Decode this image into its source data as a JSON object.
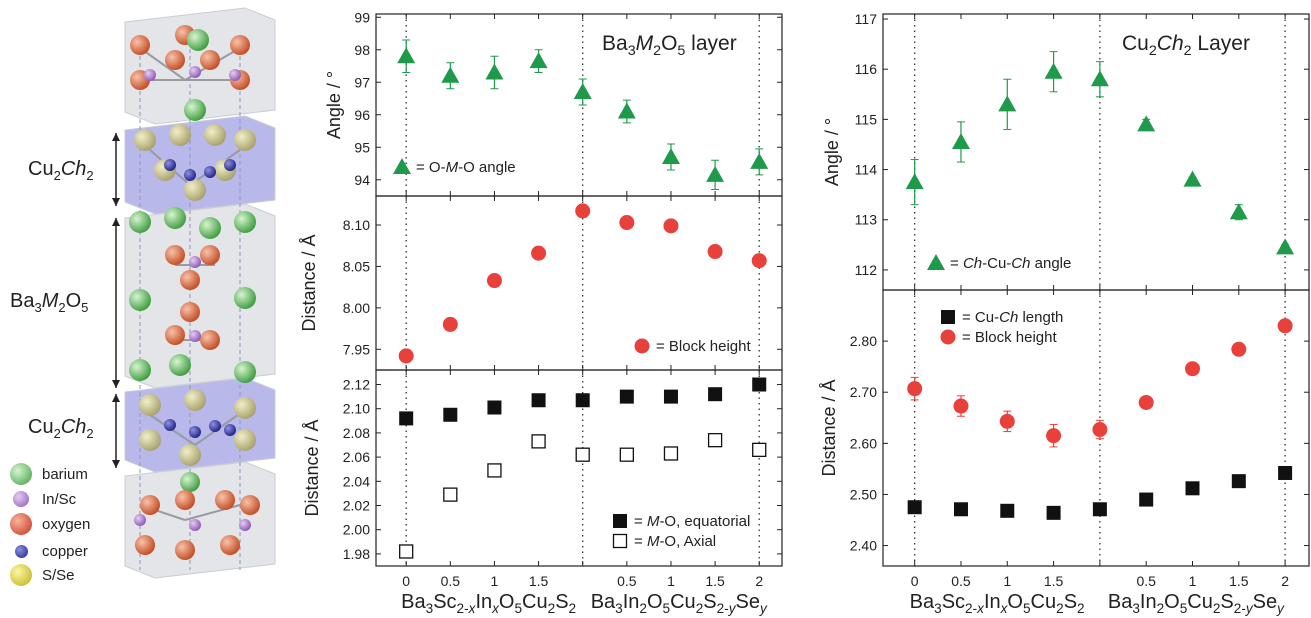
{
  "structure": {
    "labels": [
      {
        "main": "Cu",
        "sub1": "2",
        "italic": "Ch",
        "sub2": "2"
      },
      {
        "main": "Ba",
        "sub1": "3",
        "italic": "M",
        "sub2": "2",
        "tail": "O",
        "sub3": "5"
      },
      {
        "main": "Cu",
        "sub1": "2",
        "italic": "Ch",
        "sub2": "2"
      }
    ],
    "legend": [
      {
        "label": "barium",
        "color": "#5cb85c"
      },
      {
        "label": "In/Sc",
        "color": "#a36bc5"
      },
      {
        "label": "oxygen",
        "color": "#d9532c"
      },
      {
        "label": "copper",
        "color": "#2b2d9a"
      },
      {
        "label": "S/Se",
        "color": "#d9d22a"
      }
    ]
  },
  "chart_data": [
    {
      "type": "scatter",
      "panel": "middle-top",
      "title": "Ba3M2O5 layer",
      "ylabel": "Angle / °",
      "ylim": [
        93.5,
        99.1
      ],
      "yticks": [
        94,
        95,
        96,
        97,
        98,
        99
      ],
      "grid": false,
      "series": [
        {
          "name": "= O-M-O angle",
          "marker": "triangle",
          "color": "#1e9a4a",
          "x": [
            0,
            0.5,
            1,
            1.5,
            2,
            2.5,
            3,
            3.5,
            4
          ],
          "y": [
            97.8,
            97.2,
            97.3,
            97.65,
            96.7,
            96.1,
            94.7,
            94.15,
            94.55
          ],
          "err": [
            0.5,
            0.4,
            0.5,
            0.35,
            0.4,
            0.35,
            0.4,
            0.45,
            0.4
          ]
        }
      ]
    },
    {
      "type": "scatter",
      "panel": "middle-middle",
      "ylabel": "Distance / Å",
      "ylim": [
        7.925,
        8.135
      ],
      "yticks": [
        7.95,
        8.0,
        8.05,
        8.1
      ],
      "series": [
        {
          "name": "= Block height",
          "marker": "circle",
          "color": "#e8403a",
          "x": [
            0,
            0.5,
            1,
            1.5,
            2,
            2.5,
            3,
            3.5,
            4
          ],
          "y": [
            7.942,
            7.98,
            8.033,
            8.066,
            8.117,
            8.103,
            8.099,
            8.068,
            8.057
          ]
        }
      ]
    },
    {
      "type": "scatter",
      "panel": "middle-bottom",
      "ylabel": "Distance / Å",
      "ylim": [
        1.97,
        2.132
      ],
      "yticks": [
        1.98,
        2.0,
        2.02,
        2.04,
        2.06,
        2.08,
        2.1,
        2.12
      ],
      "series": [
        {
          "name": "= M-O, equatorial",
          "marker": "square-filled",
          "color": "#111111",
          "x": [
            0,
            0.5,
            1,
            1.5,
            2,
            2.5,
            3,
            3.5,
            4
          ],
          "y": [
            2.092,
            2.095,
            2.101,
            2.107,
            2.107,
            2.11,
            2.11,
            2.112,
            2.12
          ]
        },
        {
          "name": "= M-O, Axial",
          "marker": "square-open",
          "color": "#111111",
          "x": [
            0,
            0.5,
            1,
            1.5,
            2,
            2.5,
            3,
            3.5,
            4
          ],
          "y": [
            1.982,
            2.029,
            2.049,
            2.073,
            2.062,
            2.062,
            2.063,
            2.074,
            2.066
          ]
        }
      ]
    },
    {
      "type": "scatter",
      "panel": "right-top",
      "title": "Cu2Ch2 Layer",
      "ylabel": "Angle / °",
      "ylim": [
        111.6,
        117.1
      ],
      "yticks": [
        112,
        113,
        114,
        115,
        116,
        117
      ],
      "series": [
        {
          "name": "= Ch-Cu-Ch angle",
          "marker": "triangle",
          "color": "#1e9a4a",
          "x": [
            0,
            0.5,
            1,
            1.5,
            2,
            2.5,
            3,
            3.5,
            4
          ],
          "y": [
            113.75,
            114.55,
            115.3,
            115.95,
            115.8,
            114.9,
            113.8,
            113.15,
            112.45
          ],
          "err": [
            0.45,
            0.4,
            0.5,
            0.4,
            0.35,
            0.1,
            0.05,
            0.15,
            0.05
          ]
        }
      ]
    },
    {
      "type": "scatter",
      "panel": "right-bottom",
      "ylabel": "Distance / Å",
      "ylim": [
        2.36,
        2.9
      ],
      "yticks": [
        2.4,
        2.5,
        2.6,
        2.7,
        2.8
      ],
      "series": [
        {
          "name": "= Cu-Ch length",
          "marker": "square-filled",
          "color": "#111111",
          "x": [
            0,
            0.5,
            1,
            1.5,
            2,
            2.5,
            3,
            3.5,
            4
          ],
          "y": [
            2.475,
            2.471,
            2.468,
            2.464,
            2.471,
            2.49,
            2.512,
            2.526,
            2.542
          ]
        },
        {
          "name": "= Block height",
          "marker": "circle",
          "color": "#e8403a",
          "x": [
            0,
            0.5,
            1,
            1.5,
            2,
            2.5,
            3,
            3.5,
            4
          ],
          "y": [
            2.707,
            2.673,
            2.643,
            2.615,
            2.627,
            2.68,
            2.746,
            2.784,
            2.83
          ],
          "err": [
            0.022,
            0.02,
            0.02,
            0.022,
            0.018,
            0.01,
            0.005,
            0.005,
            0.005
          ]
        }
      ]
    }
  ],
  "x_axis": {
    "tick_labels": [
      "0",
      "0.5",
      "1",
      "1.5",
      "",
      "0.5",
      "1",
      "1.5",
      "2"
    ],
    "group_labels": [
      "Ba3Sc2-xInxO5Cu2S2",
      "Ba3In2O5Cu2S2-ySey"
    ]
  }
}
